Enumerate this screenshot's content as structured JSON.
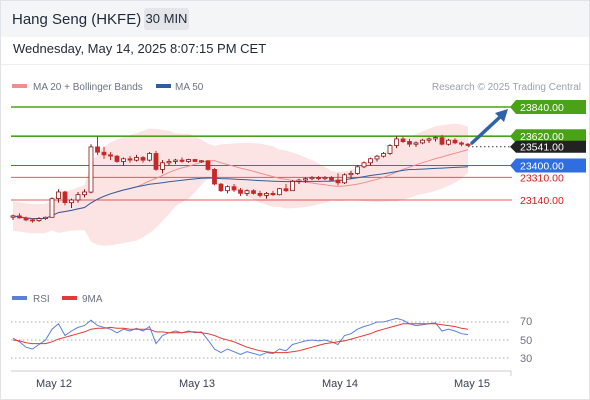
{
  "header": {
    "title": "Hang Seng (HKFE)",
    "timeframe": "30 MIN",
    "datetime": "Wednesday, May 14, 2025 8:07:15 PM CET"
  },
  "legend": [
    {
      "label": "MA 20 + Bollinger Bands",
      "color": "#f08d8d"
    },
    {
      "label": "MA 50",
      "color": "#2f5da0"
    }
  ],
  "credit": "Research © 2025 Trading Central",
  "colors": {
    "target": "#4aa316",
    "pivot": "#2f6ee0",
    "support": "#d9191b",
    "current": "#222222",
    "arrow": "#2f63a8",
    "candle_up": "#8b1414",
    "candle_down": "#c62828",
    "bands": "#fde1e1",
    "rsi": "#5b7fd6",
    "rsi_ma": "#e53935"
  },
  "chart_data": [
    {
      "type": "candlestick",
      "title": "Hang Seng (HKFE) 30 MIN",
      "x_ticks": [
        "May 12",
        "May 13",
        "May 14",
        "May 15"
      ],
      "ylim": [
        22950,
        23930
      ],
      "current_price": 23541,
      "levels": [
        {
          "value": 23840.0,
          "label": "23840.00",
          "role": "target",
          "line": "#4aa316"
        },
        {
          "value": 23620.0,
          "label": "23620.00",
          "role": "target",
          "line": "#4aa316"
        },
        {
          "value": 23400.0,
          "label": "23400.00",
          "role": "pivot",
          "line": "#2f6ee0"
        },
        {
          "value": 23310.0,
          "label": "23310.00",
          "role": "support",
          "line": "#d9191b"
        },
        {
          "value": 23140.0,
          "label": "23140.00",
          "role": "support",
          "line": "#d9191b"
        }
      ],
      "current_label": "23541.00",
      "series": [
        {
          "name": "MA 20 + Bollinger Bands",
          "type": "line"
        },
        {
          "name": "MA 50",
          "type": "line"
        }
      ],
      "ohlc": [
        [
          23010,
          23030,
          22990,
          23020
        ],
        [
          23020,
          23040,
          23000,
          23005
        ],
        [
          23005,
          23015,
          22980,
          22990
        ],
        [
          22990,
          23000,
          22970,
          22985
        ],
        [
          22985,
          23010,
          22975,
          23000
        ],
        [
          23000,
          23015,
          22990,
          23010
        ],
        [
          23010,
          23160,
          23010,
          23150
        ],
        [
          23150,
          23220,
          23120,
          23200
        ],
        [
          23200,
          23210,
          23100,
          23120
        ],
        [
          23120,
          23150,
          23080,
          23140
        ],
        [
          23140,
          23200,
          23120,
          23180
        ],
        [
          23180,
          23220,
          23160,
          23200
        ],
        [
          23200,
          23560,
          23190,
          23540
        ],
        [
          23540,
          23620,
          23480,
          23500
        ],
        [
          23500,
          23540,
          23450,
          23480
        ],
        [
          23480,
          23500,
          23440,
          23470
        ],
        [
          23470,
          23480,
          23420,
          23430
        ],
        [
          23430,
          23460,
          23400,
          23450
        ],
        [
          23450,
          23470,
          23420,
          23440
        ],
        [
          23440,
          23480,
          23430,
          23460
        ],
        [
          23460,
          23470,
          23420,
          23440
        ],
        [
          23440,
          23500,
          23430,
          23490
        ],
        [
          23490,
          23510,
          23360,
          23370
        ],
        [
          23370,
          23440,
          23340,
          23420
        ],
        [
          23420,
          23450,
          23400,
          23430
        ],
        [
          23430,
          23450,
          23410,
          23440
        ],
        [
          23440,
          23460,
          23420,
          23430
        ],
        [
          23430,
          23450,
          23420,
          23445
        ],
        [
          23445,
          23450,
          23425,
          23430
        ],
        [
          23430,
          23440,
          23420,
          23435
        ],
        [
          23435,
          23440,
          23360,
          23370
        ],
        [
          23370,
          23380,
          23250,
          23260
        ],
        [
          23260,
          23270,
          23200,
          23210
        ],
        [
          23210,
          23250,
          23190,
          23240
        ],
        [
          23240,
          23260,
          23200,
          23215
        ],
        [
          23215,
          23230,
          23170,
          23190
        ],
        [
          23190,
          23220,
          23170,
          23210
        ],
        [
          23210,
          23220,
          23180,
          23190
        ],
        [
          23190,
          23210,
          23160,
          23175
        ],
        [
          23175,
          23200,
          23150,
          23190
        ],
        [
          23190,
          23210,
          23170,
          23180
        ],
        [
          23180,
          23230,
          23175,
          23225
        ],
        [
          23225,
          23260,
          23200,
          23210
        ],
        [
          23210,
          23290,
          23210,
          23280
        ],
        [
          23280,
          23300,
          23260,
          23290
        ],
        [
          23290,
          23310,
          23270,
          23300
        ],
        [
          23300,
          23320,
          23290,
          23310
        ],
        [
          23310,
          23320,
          23290,
          23300
        ],
        [
          23300,
          23320,
          23290,
          23310
        ],
        [
          23310,
          23320,
          23280,
          23290
        ],
        [
          23290,
          23340,
          23250,
          23270
        ],
        [
          23270,
          23340,
          23260,
          23330
        ],
        [
          23330,
          23360,
          23300,
          23340
        ],
        [
          23340,
          23400,
          23330,
          23390
        ],
        [
          23390,
          23430,
          23380,
          23420
        ],
        [
          23420,
          23460,
          23400,
          23450
        ],
        [
          23450,
          23480,
          23430,
          23470
        ],
        [
          23470,
          23500,
          23460,
          23490
        ],
        [
          23490,
          23560,
          23480,
          23550
        ],
        [
          23550,
          23620,
          23530,
          23600
        ],
        [
          23600,
          23620,
          23570,
          23580
        ],
        [
          23580,
          23600,
          23540,
          23560
        ],
        [
          23560,
          23580,
          23540,
          23570
        ],
        [
          23570,
          23600,
          23560,
          23590
        ],
        [
          23590,
          23610,
          23570,
          23600
        ],
        [
          23600,
          23620,
          23580,
          23610
        ],
        [
          23610,
          23630,
          23550,
          23560
        ],
        [
          23560,
          23600,
          23550,
          23590
        ],
        [
          23590,
          23605,
          23560,
          23570
        ],
        [
          23570,
          23580,
          23545,
          23560
        ],
        [
          23560,
          23570,
          23545,
          23550
        ]
      ]
    },
    {
      "type": "line",
      "title": "RSI",
      "x_ticks": [
        "May 12",
        "May 13",
        "May 14",
        "May 15"
      ],
      "ylim": [
        15,
        85
      ],
      "y_ticks": [
        70,
        50,
        30
      ],
      "series": [
        {
          "name": "RSI",
          "values": [
            52,
            48,
            42,
            40,
            45,
            50,
            62,
            68,
            55,
            60,
            64,
            66,
            72,
            66,
            64,
            62,
            58,
            62,
            60,
            63,
            60,
            65,
            46,
            55,
            58,
            60,
            58,
            60,
            58,
            59,
            50,
            40,
            36,
            40,
            37,
            34,
            37,
            35,
            33,
            36,
            35,
            40,
            38,
            45,
            47,
            49,
            50,
            49,
            50,
            48,
            45,
            55,
            57,
            62,
            65,
            67,
            70,
            70,
            72,
            74,
            72,
            68,
            66,
            67,
            68,
            69,
            60,
            62,
            60,
            57,
            56
          ]
        },
        {
          "name": "9MA",
          "values": [
            50,
            49,
            47,
            46,
            46,
            46,
            48,
            51,
            53,
            55,
            57,
            59,
            62,
            63,
            63,
            64,
            63,
            63,
            62,
            62,
            62,
            62,
            59,
            59,
            58,
            58,
            58,
            59,
            59,
            58,
            57,
            55,
            52,
            50,
            48,
            45,
            42,
            40,
            38,
            37,
            36,
            36,
            36,
            37,
            38,
            40,
            42,
            44,
            46,
            47,
            48,
            49,
            51,
            53,
            55,
            57,
            60,
            62,
            64,
            66,
            68,
            68,
            68,
            68,
            68,
            68,
            67,
            66,
            65,
            63,
            62
          ]
        }
      ]
    }
  ],
  "rsi_legend": [
    {
      "label": "RSI",
      "color": "#5b7fd6"
    },
    {
      "label": "9MA",
      "color": "#e53935"
    }
  ]
}
